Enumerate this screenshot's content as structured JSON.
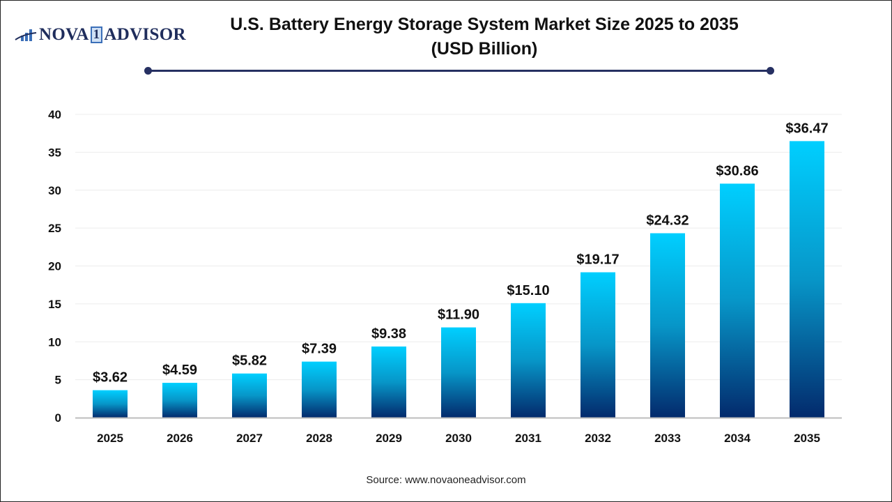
{
  "logo": {
    "text_left": "NOVA",
    "text_mid": "1",
    "text_right": "ADVISOR"
  },
  "chart_data": {
    "type": "bar",
    "title": "U.S. Battery Energy Storage System Market Size 2025 to 2035",
    "subtitle": "(USD Billion)",
    "categories": [
      "2025",
      "2026",
      "2027",
      "2028",
      "2029",
      "2030",
      "2031",
      "2032",
      "2033",
      "2034",
      "2035"
    ],
    "values": [
      3.62,
      4.59,
      5.82,
      7.39,
      9.38,
      11.9,
      15.1,
      19.17,
      24.32,
      30.86,
      36.47
    ],
    "data_labels": [
      "$3.62",
      "$4.59",
      "$5.82",
      "$7.39",
      "$9.38",
      "$11.90",
      "$15.10",
      "$19.17",
      "$24.32",
      "$30.86",
      "$36.47"
    ],
    "xlabel": "",
    "ylabel": "",
    "ylim": [
      0,
      40
    ],
    "yticks": [
      0,
      5,
      10,
      15,
      20,
      25,
      30,
      35,
      40
    ],
    "grid": true,
    "legend": "none",
    "colors": {
      "bar_top": "#00cfff",
      "bar_bottom": "#032a6c",
      "title_rule": "#263062"
    }
  },
  "source": "Source: www.novaoneadvisor.com"
}
